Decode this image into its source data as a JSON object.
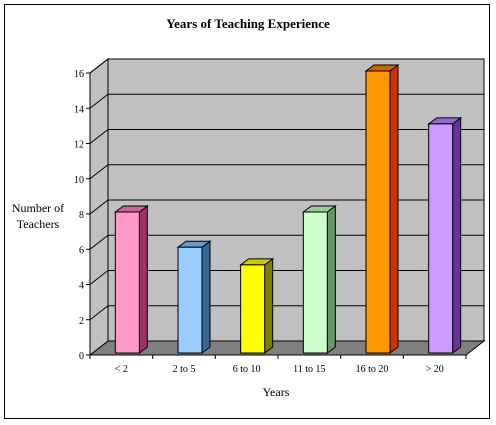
{
  "chart_data": {
    "type": "bar",
    "title": "Years of Teaching Experience",
    "xlabel": "Years",
    "ylabel_lines": [
      "Number of",
      "Teachers"
    ],
    "categories": [
      "< 2",
      "2 to 5",
      "6 to 10",
      "11 to 15",
      "16 to 20",
      "> 20"
    ],
    "values": [
      8,
      6,
      5,
      8,
      16,
      13
    ],
    "ylim": [
      0,
      16
    ],
    "yticks": [
      0,
      2,
      4,
      6,
      8,
      10,
      12,
      14,
      16
    ],
    "grid": true,
    "three_d": true,
    "colors": [
      {
        "front": "#ff99cc",
        "side": "#993366",
        "top": "#cc6699"
      },
      {
        "front": "#99ccff",
        "side": "#336699",
        "top": "#6699cc"
      },
      {
        "front": "#ffff00",
        "side": "#808000",
        "top": "#cccc00"
      },
      {
        "front": "#ccffcc",
        "side": "#669966",
        "top": "#99cc99"
      },
      {
        "front": "#ff9900",
        "side": "#cc3300",
        "top": "#cc6600"
      },
      {
        "front": "#cc99ff",
        "side": "#663399",
        "top": "#9966cc"
      }
    ],
    "wall_color": "#c0c0c0",
    "floor_color": "#808080"
  }
}
